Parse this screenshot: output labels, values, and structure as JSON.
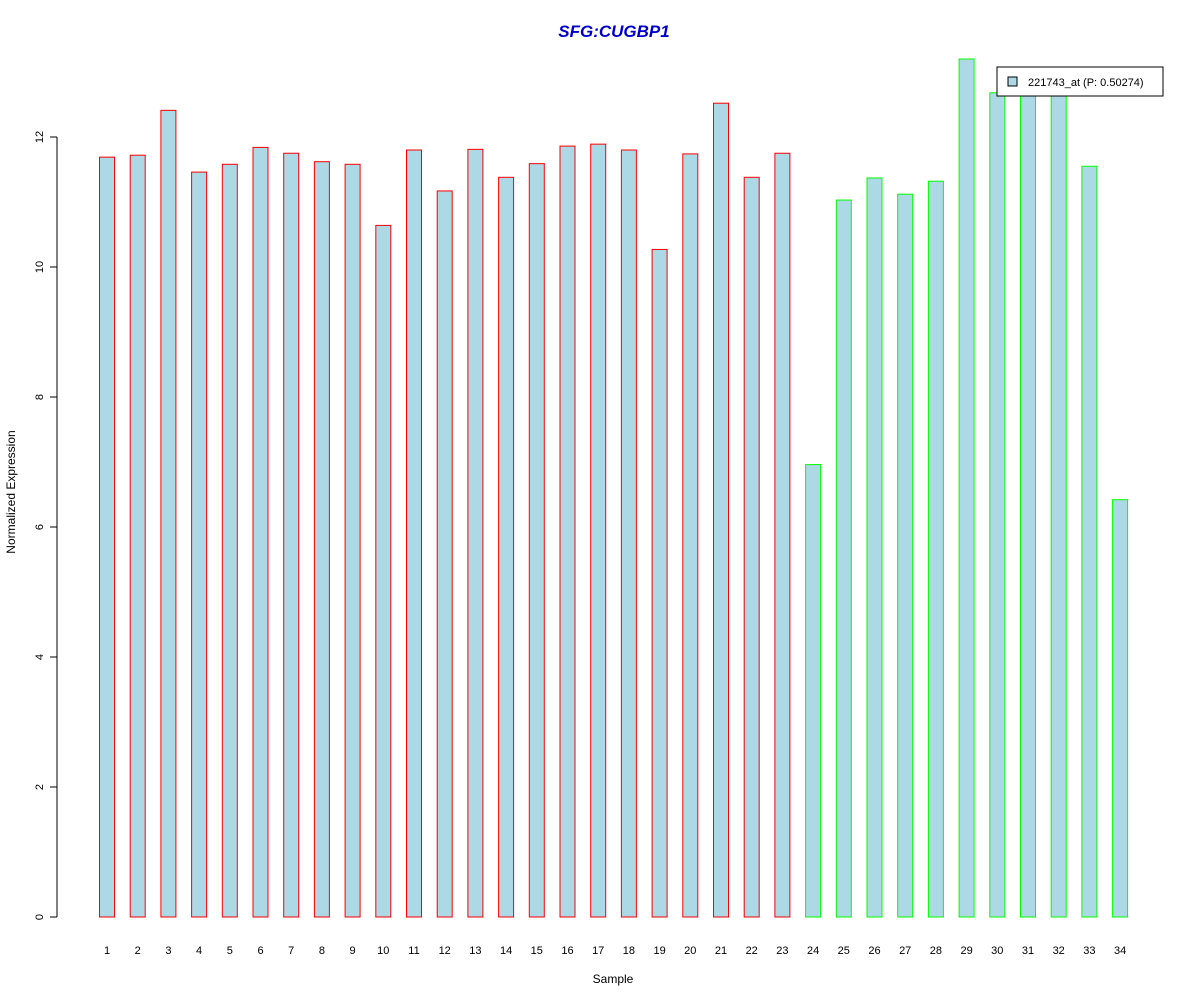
{
  "chart_data": {
    "type": "bar",
    "title": "SFG:CUGBP1",
    "xlabel": "Sample",
    "ylabel": "Normalized Expression",
    "categories": [
      "1",
      "2",
      "3",
      "4",
      "5",
      "6",
      "7",
      "8",
      "9",
      "10",
      "11",
      "12",
      "13",
      "14",
      "15",
      "16",
      "17",
      "18",
      "19",
      "20",
      "21",
      "22",
      "23",
      "24",
      "25",
      "26",
      "27",
      "28",
      "29",
      "30",
      "31",
      "32",
      "33",
      "34"
    ],
    "series": [
      {
        "name": "221743_at (P: 0.50274)",
        "values": [
          11.69,
          11.72,
          12.41,
          11.46,
          11.58,
          11.84,
          11.75,
          11.62,
          11.58,
          10.64,
          11.8,
          11.17,
          11.81,
          11.38,
          11.59,
          11.86,
          11.89,
          11.8,
          10.27,
          11.74,
          12.52,
          11.38,
          11.75,
          6.96,
          11.03,
          11.37,
          11.12,
          11.32,
          13.2,
          12.68,
          12.68,
          12.68,
          11.55,
          6.42
        ]
      }
    ],
    "group_of_sample": [
      1,
      1,
      1,
      1,
      1,
      1,
      1,
      1,
      1,
      1,
      1,
      1,
      1,
      1,
      1,
      1,
      1,
      1,
      1,
      1,
      1,
      1,
      1,
      2,
      2,
      2,
      2,
      2,
      2,
      2,
      2,
      2,
      2,
      2
    ],
    "y_ticks": [
      0,
      2,
      4,
      6,
      8,
      10,
      12
    ],
    "ylim": [
      0,
      13.2
    ],
    "grid": false,
    "legend_position": "top-right",
    "colors": {
      "bar_fill": "#add8e6",
      "group1_border": "#ff0000",
      "group2_border": "#00ff00",
      "title": "#0000cc",
      "axis": "#000000"
    }
  }
}
